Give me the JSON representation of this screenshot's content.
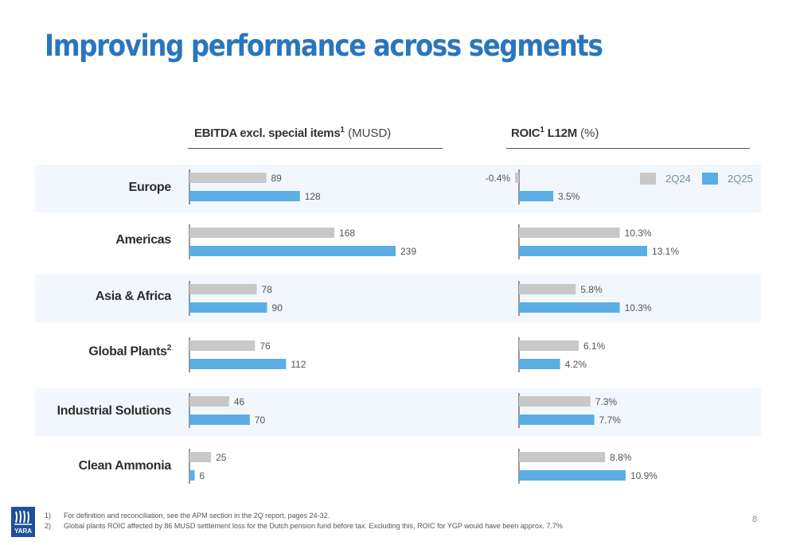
{
  "title": "Improving performance across segments",
  "ebitda_header": {
    "title": "EBITDA excl. special items",
    "sup": "1",
    "unit": "(MUSD)"
  },
  "roic_header": {
    "title_a": "ROIC",
    "sup": "1",
    "title_b": " L12M",
    "unit": "(%)"
  },
  "legend": [
    {
      "label": "2Q24",
      "color": "#c8c8c8"
    },
    {
      "label": "2Q25",
      "color": "#5aaee3"
    }
  ],
  "segments": [
    {
      "label": "Europe",
      "sup": ""
    },
    {
      "label": "Americas",
      "sup": ""
    },
    {
      "label": "Asia & Africa",
      "sup": ""
    },
    {
      "label": "Global Plants",
      "sup": "2"
    },
    {
      "label": "Industrial Solutions",
      "sup": ""
    },
    {
      "label": "Clean Ammonia",
      "sup": ""
    }
  ],
  "chart_data": [
    {
      "type": "bar",
      "orientation": "horizontal",
      "title": "EBITDA excl. special items (MUSD)",
      "categories": [
        "Europe",
        "Americas",
        "Asia & Africa",
        "Global Plants",
        "Industrial Solutions",
        "Clean Ammonia"
      ],
      "series": [
        {
          "name": "2Q24",
          "values": [
            89,
            168,
            78,
            76,
            46,
            25
          ],
          "labels": [
            "89",
            "168",
            "78",
            "76",
            "46",
            "25"
          ]
        },
        {
          "name": "2Q25",
          "values": [
            128,
            239,
            90,
            112,
            70,
            6
          ],
          "labels": [
            "128",
            "239",
            "90",
            "112",
            "70",
            "6"
          ]
        }
      ],
      "xlim": [
        0,
        239
      ]
    },
    {
      "type": "bar",
      "orientation": "horizontal",
      "title": "ROIC L12M (%)",
      "categories": [
        "Europe",
        "Americas",
        "Asia & Africa",
        "Global Plants",
        "Industrial Solutions",
        "Clean Ammonia"
      ],
      "series": [
        {
          "name": "2Q24",
          "values": [
            -0.4,
            10.3,
            5.8,
            6.1,
            7.3,
            8.8
          ],
          "labels": [
            "-0.4%",
            "10.3%",
            "5.8%",
            "6.1%",
            "7.3%",
            "8.8%"
          ]
        },
        {
          "name": "2Q25",
          "values": [
            3.5,
            13.1,
            10.3,
            4.2,
            7.7,
            10.9
          ],
          "labels": [
            "3.5%",
            "13.1%",
            "10.3%",
            "4.2%",
            "7.7%",
            "10.9%"
          ]
        }
      ],
      "xlim": [
        -0.4,
        13.1
      ]
    }
  ],
  "footnotes": [
    {
      "num": "1)",
      "text": "For definition and reconciliation, see the APM section in the 2Q report, pages 24-32."
    },
    {
      "num": "2)",
      "text": "Global plants ROIC affected by 86 MUSD settlement loss for the Dutch pension fund before tax. Excluding this, ROIC for YGP would have been approx. 7.7%"
    }
  ],
  "page_number": "8",
  "logo_text": "YARA"
}
